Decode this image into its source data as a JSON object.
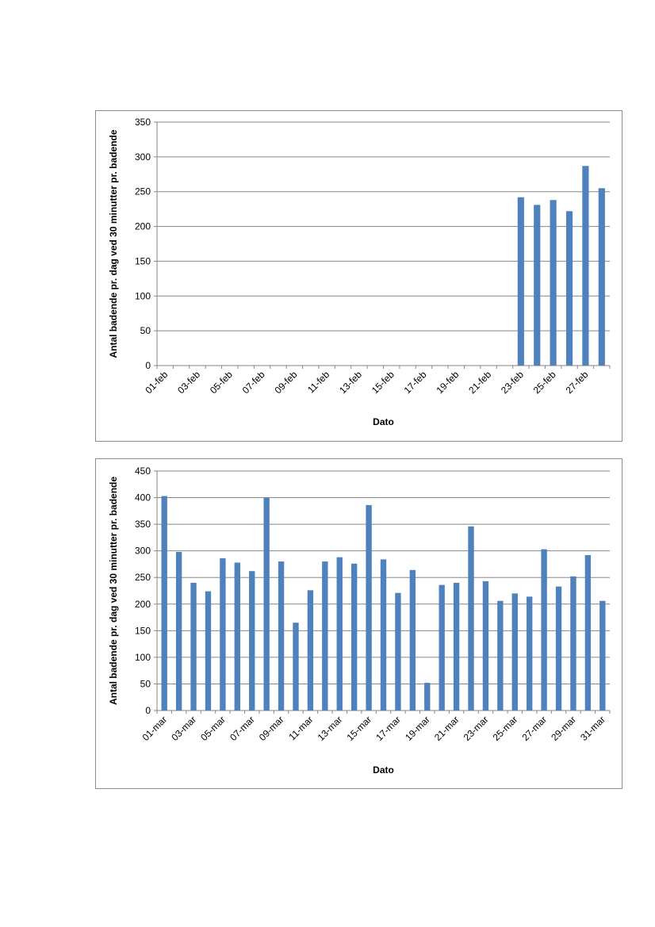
{
  "chart_data": [
    {
      "type": "bar",
      "xlabel": "Dato",
      "ylabel": "Antal badende pr. dag ved 30 minutter pr. badende",
      "ylim": [
        0,
        350
      ],
      "yticks": [
        0,
        50,
        100,
        150,
        200,
        250,
        300,
        350
      ],
      "grid": true,
      "bar_color": "#4f81bd",
      "categories": [
        "01-feb",
        "02-feb",
        "03-feb",
        "04-feb",
        "05-feb",
        "06-feb",
        "07-feb",
        "08-feb",
        "09-feb",
        "10-feb",
        "11-feb",
        "12-feb",
        "13-feb",
        "14-feb",
        "15-feb",
        "16-feb",
        "17-feb",
        "18-feb",
        "19-feb",
        "20-feb",
        "21-feb",
        "22-feb",
        "23-feb",
        "24-feb",
        "25-feb",
        "26-feb",
        "27-feb",
        "28-feb"
      ],
      "tick_labels": [
        "01-feb",
        "03-feb",
        "05-feb",
        "07-feb",
        "09-feb",
        "11-feb",
        "13-feb",
        "15-feb",
        "17-feb",
        "19-feb",
        "21-feb",
        "23-feb",
        "25-feb",
        "27-feb"
      ],
      "values": [
        0,
        0,
        0,
        0,
        0,
        0,
        0,
        0,
        0,
        0,
        0,
        0,
        0,
        0,
        0,
        0,
        0,
        0,
        0,
        0,
        0,
        0,
        242,
        231,
        238,
        222,
        287,
        255
      ]
    },
    {
      "type": "bar",
      "xlabel": "Dato",
      "ylabel": "Antal badende pr. dag ved 30 minutter pr. badende",
      "ylim": [
        0,
        450
      ],
      "yticks": [
        0,
        50,
        100,
        150,
        200,
        250,
        300,
        350,
        400,
        450
      ],
      "grid": true,
      "bar_color": "#4f81bd",
      "categories": [
        "01-mar",
        "02-mar",
        "03-mar",
        "04-mar",
        "05-mar",
        "06-mar",
        "07-mar",
        "08-mar",
        "09-mar",
        "10-mar",
        "11-mar",
        "12-mar",
        "13-mar",
        "14-mar",
        "15-mar",
        "16-mar",
        "17-mar",
        "18-mar",
        "19-mar",
        "20-mar",
        "21-mar",
        "22-mar",
        "23-mar",
        "24-mar",
        "25-mar",
        "26-mar",
        "27-mar",
        "28-mar",
        "29-mar",
        "30-mar",
        "31-mar"
      ],
      "tick_labels": [
        "01-mar",
        "03-mar",
        "05-mar",
        "07-mar",
        "09-mar",
        "11-mar",
        "13-mar",
        "15-mar",
        "17-mar",
        "19-mar",
        "21-mar",
        "23-mar",
        "25-mar",
        "27-mar",
        "29-mar",
        "31-mar"
      ],
      "values": [
        403,
        298,
        240,
        224,
        286,
        278,
        262,
        400,
        280,
        165,
        226,
        280,
        288,
        276,
        386,
        284,
        221,
        264,
        52,
        236,
        240,
        346,
        243,
        206,
        220,
        214,
        303,
        233,
        252,
        292,
        206
      ]
    }
  ]
}
